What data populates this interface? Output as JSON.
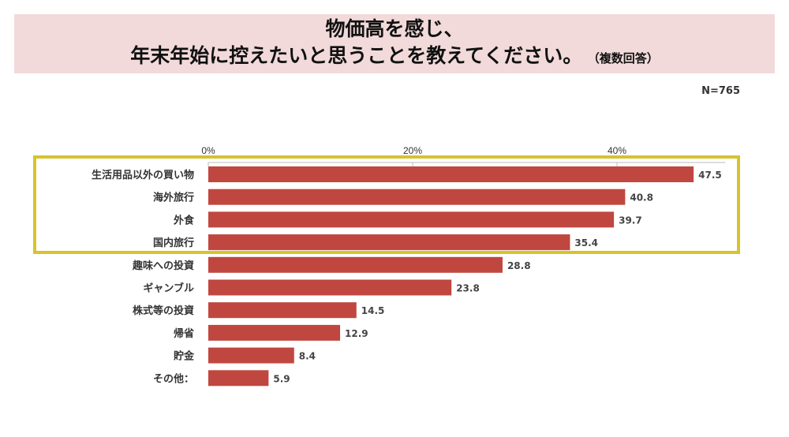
{
  "header": {
    "title_line1": "物価高を感じ、",
    "title_line2": "年末年始に控えたいと思うことを教えてください。",
    "title_note": "（複数回答）",
    "sample_size": "N=765"
  },
  "chart_data": {
    "type": "bar",
    "orientation": "horizontal",
    "title": "物価高を感じ、年末年始に控えたいと思うことを教えてください。",
    "categories": [
      "生活用品以外の買い物",
      "海外旅行",
      "外食",
      "国内旅行",
      "趣味への投資",
      "ギャンブル",
      "株式等の投資",
      "帰省",
      "貯金",
      "その他："
    ],
    "values": [
      47.5,
      40.8,
      39.7,
      35.4,
      28.8,
      23.8,
      14.5,
      12.9,
      8.4,
      5.9
    ],
    "data_labels": [
      "47.5",
      "40.8",
      "39.7",
      "35.4",
      "28.8",
      "23.8",
      "14.5",
      "12.9",
      "8.4",
      "5.9"
    ],
    "xlim": [
      0,
      50
    ],
    "xticks": [
      0,
      20,
      40
    ],
    "xtick_labels": [
      "0%",
      "20%",
      "40%"
    ],
    "axis_position": "top",
    "grid": false,
    "highlighted_categories": [
      "生活用品以外の買い物",
      "海外旅行",
      "外食",
      "国内旅行"
    ],
    "colors": {
      "bar": "#c0473f",
      "highlight_box": "#d6c42c",
      "title_band": "#f2dada"
    }
  }
}
